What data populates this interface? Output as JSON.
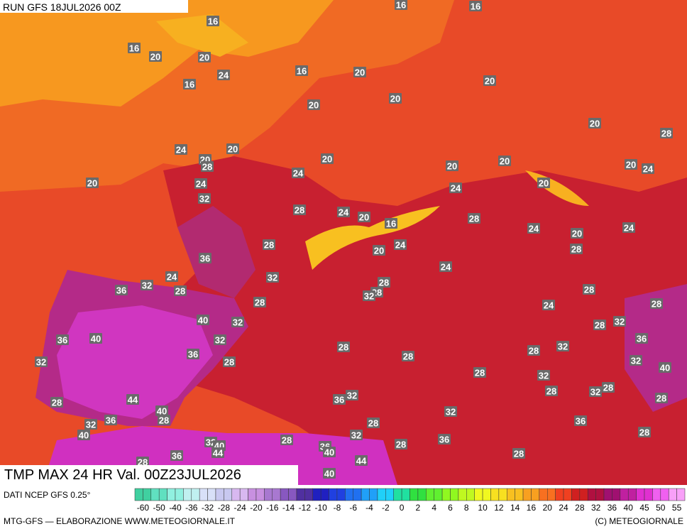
{
  "header": {
    "run": "RUN GFS 18JUL2026 00Z",
    "title": "TMP MAX 24 HR Val. 00Z23JUL2026"
  },
  "footer": {
    "source": "DATI NCEP GFS 0.25°",
    "credit": "MTG-GFS — ELABORAZIONE WWW.METEOGIORNALE.IT",
    "copyright": "(C) METEOGIORNALE"
  },
  "colorbar": {
    "ticks": [
      -60,
      -50,
      -40,
      -36,
      -32,
      -28,
      -24,
      -20,
      -16,
      -14,
      -12,
      -10,
      -8,
      -6,
      -4,
      -2,
      0,
      2,
      4,
      6,
      8,
      10,
      12,
      14,
      16,
      20,
      24,
      28,
      32,
      36,
      40,
      45,
      50,
      55
    ],
    "colors": [
      "#40d0a0",
      "#60e0c0",
      "#90f0e0",
      "#c0f0f0",
      "#d8e0f8",
      "#c8c8f0",
      "#d8b8f0",
      "#c890e0",
      "#a878d0",
      "#8858c0",
      "#5030a0",
      "#2020c0",
      "#2040e0",
      "#2070f0",
      "#20a0f8",
      "#20d0f8",
      "#20e0a0",
      "#30e040",
      "#60f030",
      "#90f820",
      "#c0f820",
      "#f0f820",
      "#f8e020",
      "#f8c020",
      "#f8a020",
      "#f87020",
      "#f04020",
      "#d02020",
      "#b01040",
      "#a01070",
      "#c020a0",
      "#e030d0",
      "#f060f0",
      "#f8a0f8"
    ]
  },
  "labels": [
    16,
    16,
    16,
    16,
    20,
    20,
    24,
    16,
    20,
    16,
    20,
    20,
    20,
    20,
    28,
    24,
    20,
    20,
    28,
    20,
    20,
    20,
    20,
    24,
    24,
    20,
    24,
    20,
    24,
    32,
    28,
    24,
    20,
    16,
    28,
    24,
    20,
    24,
    28,
    20,
    24,
    28,
    36,
    24,
    24,
    32,
    36,
    32,
    28,
    28,
    28,
    32,
    28,
    28,
    24,
    28,
    40,
    32,
    28,
    32,
    36,
    40,
    32,
    36,
    28,
    32,
    28,
    36,
    28,
    32,
    28,
    32,
    40,
    28,
    32,
    28,
    32,
    28,
    36,
    32,
    44,
    28,
    28,
    40,
    32,
    36,
    32,
    28,
    28,
    36,
    40,
    28,
    32,
    36,
    28,
    32,
    40,
    28,
    36,
    40,
    44,
    36,
    44,
    28,
    28,
    40
  ]
}
